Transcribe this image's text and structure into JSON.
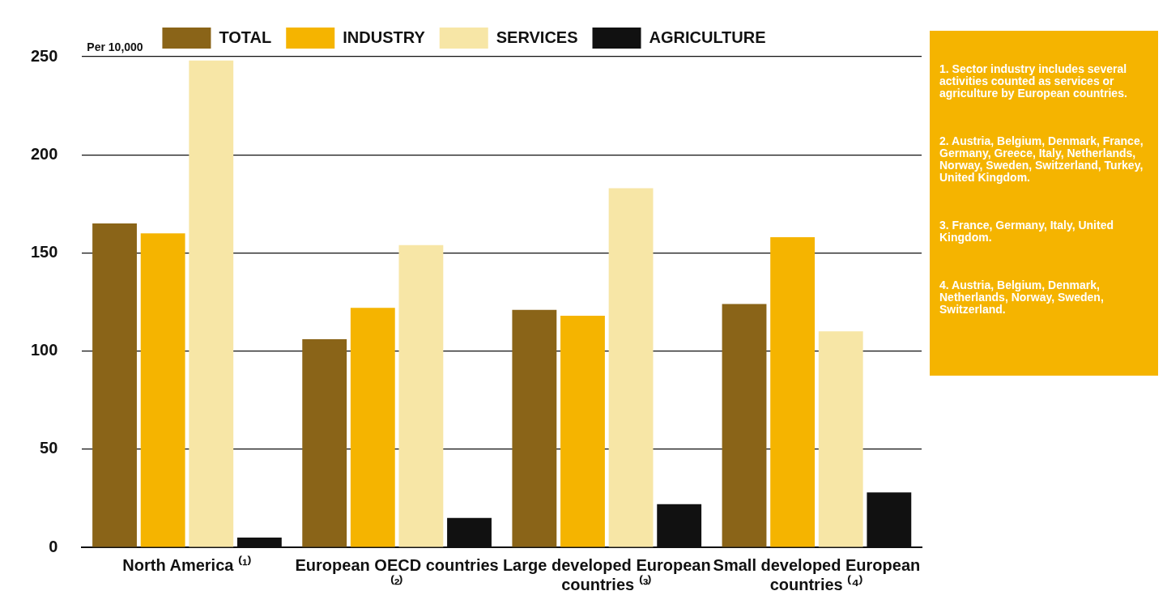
{
  "chart_data": {
    "type": "bar",
    "ylabel": "Per 10,000",
    "categories": [
      "North America ⁽¹⁾",
      "European OECD countries ⁽²⁾",
      "Large developed European countries ⁽³⁾",
      "Small developed European countries ⁽⁴⁾"
    ],
    "series": [
      {
        "name": "TOTAL",
        "color": "#8a6418",
        "values": [
          165,
          106,
          121,
          124
        ]
      },
      {
        "name": "INDUSTRY",
        "color": "#f5b400",
        "values": [
          160,
          122,
          118,
          158
        ]
      },
      {
        "name": "SERVICES",
        "color": "#f7e6a6",
        "values": [
          248,
          154,
          183,
          110
        ]
      },
      {
        "name": "AGRICULTURE",
        "color": "#111111",
        "values": [
          5,
          15,
          22,
          28
        ]
      }
    ],
    "ylim": [
      0,
      250
    ],
    "yticks": [
      0,
      50,
      100,
      150,
      200,
      250
    ],
    "grid": "y",
    "legend": "top",
    "annotations": [
      "1. Sector industry includes several activities counted as services or agriculture by European countries.",
      "2. Austria, Belgium, Denmark, France, Germany, Greece, Italy, Netherlands, Norway, Sweden, Switzerland, Turkey, United Kingdom.",
      "3. France, Germany, Italy, United Kingdom.",
      "4. Austria, Belgium, Denmark, Netherlands, Norway, Sweden, Switzerland."
    ]
  }
}
